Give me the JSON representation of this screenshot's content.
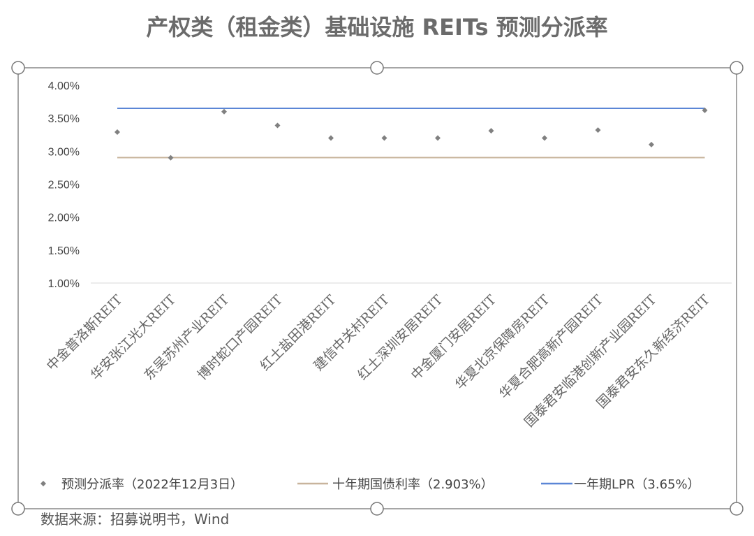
{
  "chart_data": {
    "type": "scatter",
    "title": "产权类（租金类）基础设施 REITs 预测分派率",
    "categories": [
      "中金普洛斯REIT",
      "华安张江光大REIT",
      "东吴苏州产业REIT",
      "博时蛇口产园REIT",
      "红土盐田港REIT",
      "建信中关村REIT",
      "红土深圳安居REIT",
      "中金厦门安居REIT",
      "华夏北京保障房REIT",
      "华夏合肥高新产园REIT",
      "国泰君安临港创新产业园REIT",
      "国泰君安东久新经济REIT"
    ],
    "series": [
      {
        "name": "预测分派率（2022年12月3日）",
        "kind": "scatter",
        "color": "#808080",
        "values": [
          3.29,
          2.9,
          3.6,
          3.39,
          3.2,
          3.2,
          3.2,
          3.31,
          3.2,
          3.32,
          3.1,
          3.62
        ]
      },
      {
        "name": "十年期国债利率（2.903%）",
        "kind": "line",
        "color": "#c8b49c",
        "value": 2.903
      },
      {
        "name": "一年期LPR（3.65%）",
        "kind": "line",
        "color": "#5b86d6",
        "value": 3.65
      }
    ],
    "ylim": [
      1.0,
      4.0
    ],
    "yticks": [
      "4.00%",
      "3.50%",
      "3.00%",
      "2.50%",
      "2.00%",
      "1.50%",
      "1.00%"
    ],
    "grid": false,
    "legend_position": "bottom"
  },
  "source": "数据来源：招募说明书，Wind"
}
